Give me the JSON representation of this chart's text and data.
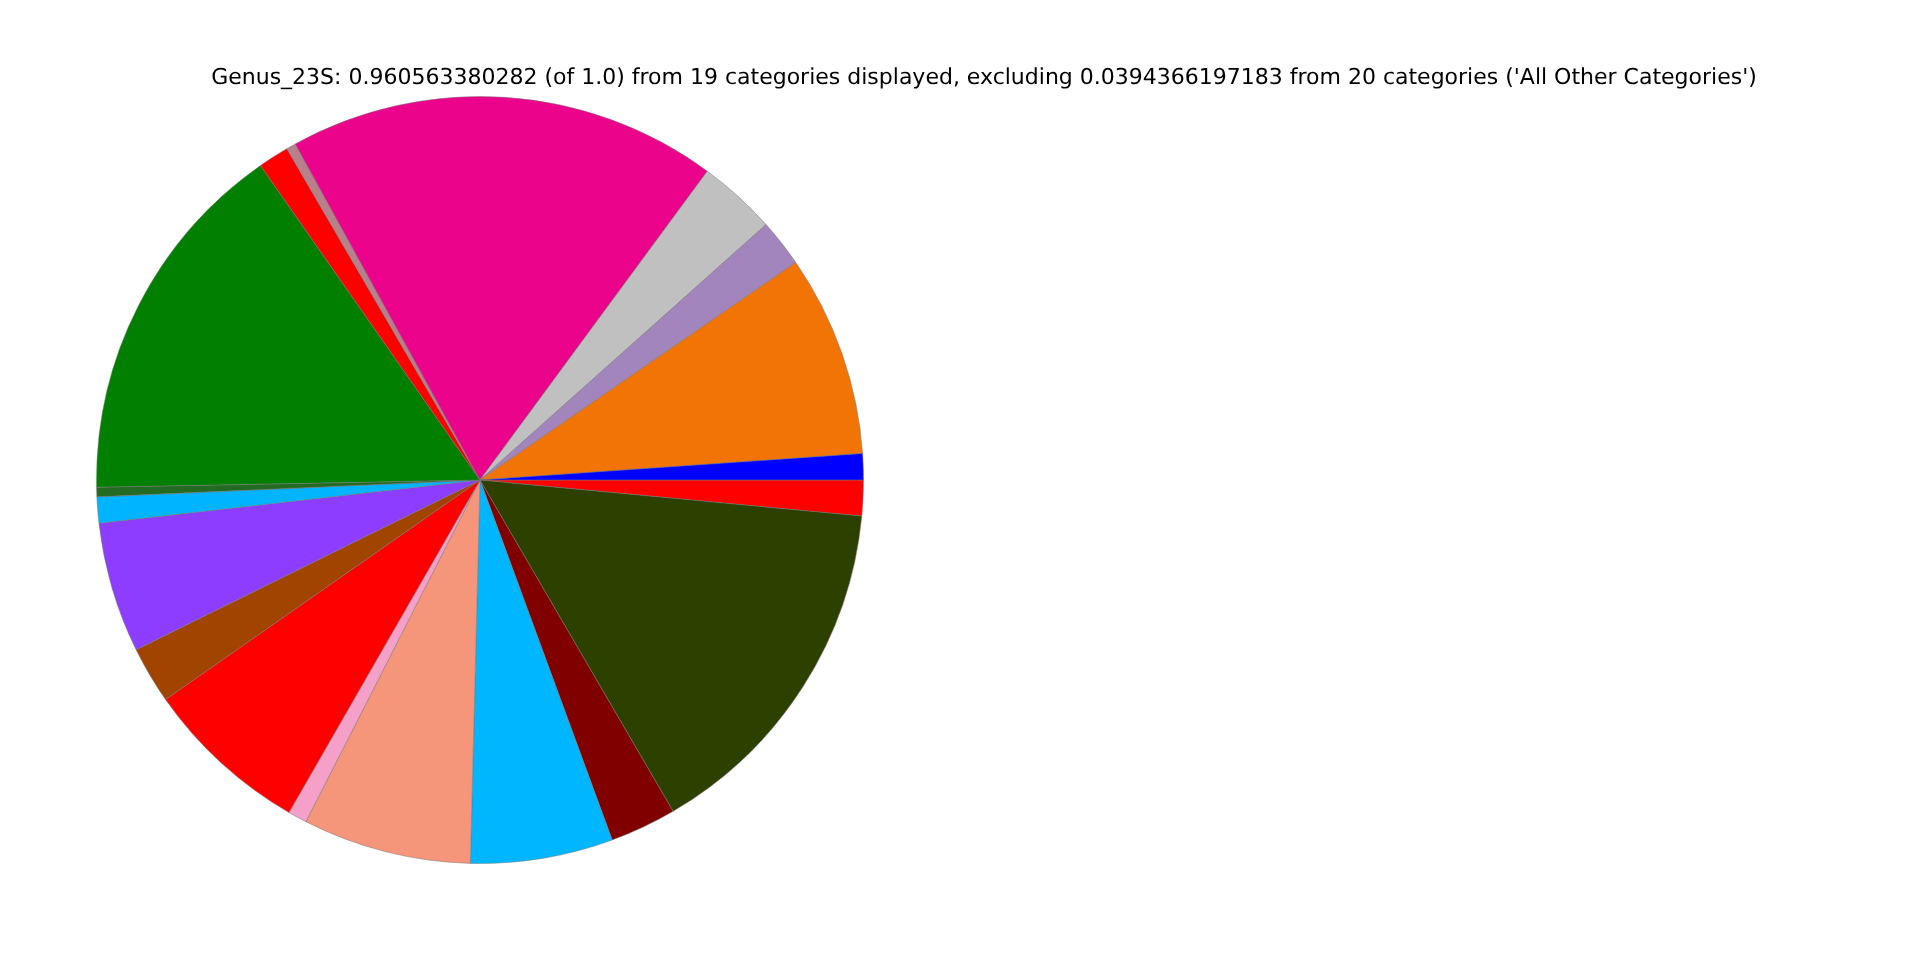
{
  "chart_data": {
    "type": "pie",
    "title": "Genus_23S: 0.960563380282 (of 1.0) from 19 categories displayed, excluding 0.0394366197183 from 20 categories ('All Other Categories')",
    "categories": [
      null,
      null,
      null,
      null,
      null,
      null,
      null,
      null,
      null,
      null,
      null,
      null,
      null,
      null,
      null,
      null,
      null,
      null,
      null
    ],
    "values": [
      1.1,
      8.5,
      2.0,
      3.3,
      18.1,
      0.4,
      1.3,
      15.6,
      0.4,
      1.1,
      5.5,
      2.4,
      7.0,
      0.8,
      7.1,
      6.0,
      2.8,
      15.1,
      1.5
    ],
    "colors": [
      "#0000ff",
      "#f27405",
      "#a285bd",
      "#c0c0c0",
      "#ec038c",
      "#b8808a",
      "#ff0000",
      "#007f00",
      "#236b23",
      "#00b4ff",
      "#8c3dff",
      "#a04400",
      "#ff0000",
      "#f4a0c8",
      "#f5967a",
      "#00b6ff",
      "#800000",
      "#2c4000",
      "#ff0000"
    ],
    "legend": false
  }
}
